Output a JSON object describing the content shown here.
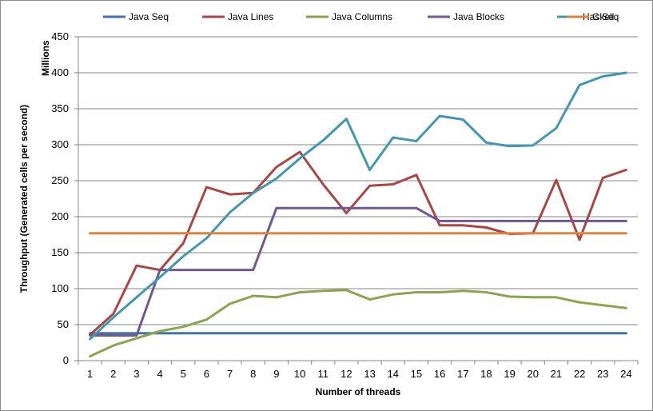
{
  "chart_data": {
    "type": "line",
    "title": "",
    "xlabel": "Number of threads",
    "ylabel": "Throughput (Generated cells per second)",
    "y_unit_label": "Millions",
    "x": [
      1,
      2,
      3,
      4,
      5,
      6,
      7,
      8,
      9,
      10,
      11,
      12,
      13,
      14,
      15,
      16,
      17,
      18,
      19,
      20,
      21,
      22,
      23,
      24
    ],
    "xticks": [
      "1",
      "2",
      "3",
      "4",
      "5",
      "6",
      "7",
      "8",
      "9",
      "10",
      "11",
      "12",
      "13",
      "14",
      "15",
      "16",
      "17",
      "18",
      "19",
      "20",
      "21",
      "22",
      "23",
      "24"
    ],
    "ylim": [
      0,
      450
    ],
    "yticks": [
      "0",
      "50",
      "100",
      "150",
      "200",
      "250",
      "300",
      "350",
      "400",
      "450"
    ],
    "ytick_values": [
      0,
      50,
      100,
      150,
      200,
      250,
      300,
      350,
      400,
      450
    ],
    "grid": "horizontal",
    "legend_position": "top",
    "series": [
      {
        "name": "Java Seq",
        "color": "#4572a7",
        "values": [
          38,
          38,
          38,
          38,
          38,
          38,
          38,
          38,
          38,
          38,
          38,
          38,
          38,
          38,
          38,
          38,
          38,
          38,
          38,
          38,
          38,
          38,
          38,
          38
        ]
      },
      {
        "name": "Java Lines",
        "color": "#aa4643",
        "values": [
          36,
          65,
          132,
          126,
          163,
          241,
          231,
          233,
          269,
          290,
          245,
          205,
          243,
          245,
          258,
          188,
          188,
          185,
          176,
          177,
          251,
          168,
          254,
          265
        ]
      },
      {
        "name": "Java Columns",
        "color": "#89a54e",
        "values": [
          6,
          21,
          31,
          41,
          47,
          57,
          79,
          90,
          88,
          95,
          97,
          98,
          85,
          92,
          95,
          95,
          97,
          95,
          89,
          88,
          88,
          81,
          77,
          73
        ]
      },
      {
        "name": "Java Blocks",
        "color": "#71588f",
        "values": [
          35,
          35,
          35,
          126,
          126,
          126,
          126,
          126,
          212,
          212,
          212,
          212,
          212,
          212,
          212,
          194,
          194,
          194,
          194,
          194,
          194,
          194,
          194,
          194
        ]
      },
      {
        "name": "Haskell",
        "color": "#4198af",
        "values": [
          30,
          60,
          88,
          116,
          145,
          170,
          206,
          233,
          253,
          281,
          306,
          336,
          265,
          310,
          305,
          340,
          335,
          303,
          298,
          299,
          323,
          383,
          395,
          400
        ]
      },
      {
        "name": "C Seq",
        "color": "#db843d",
        "values": [
          177,
          177,
          177,
          177,
          177,
          177,
          177,
          177,
          177,
          177,
          177,
          177,
          177,
          177,
          177,
          177,
          177,
          177,
          177,
          177,
          177,
          177,
          177,
          177
        ]
      }
    ]
  }
}
